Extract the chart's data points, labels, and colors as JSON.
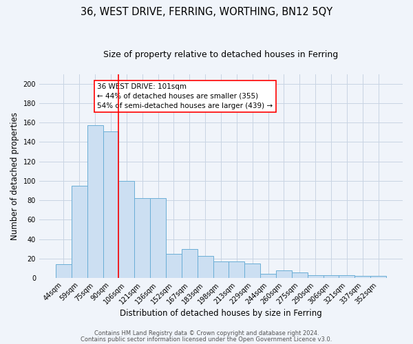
{
  "title": "36, WEST DRIVE, FERRING, WORTHING, BN12 5QY",
  "subtitle": "Size of property relative to detached houses in Ferring",
  "xlabel": "Distribution of detached houses by size in Ferring",
  "ylabel": "Number of detached properties",
  "bar_labels": [
    "44sqm",
    "59sqm",
    "75sqm",
    "90sqm",
    "106sqm",
    "121sqm",
    "136sqm",
    "152sqm",
    "167sqm",
    "183sqm",
    "198sqm",
    "213sqm",
    "229sqm",
    "244sqm",
    "260sqm",
    "275sqm",
    "290sqm",
    "306sqm",
    "321sqm",
    "337sqm",
    "352sqm"
  ],
  "bar_heights": [
    14,
    95,
    157,
    151,
    100,
    82,
    82,
    25,
    30,
    23,
    17,
    17,
    15,
    4,
    8,
    6,
    3,
    3,
    3,
    2,
    2
  ],
  "bar_color": "#ccdff2",
  "bar_edge_color": "#6aaed6",
  "red_line_index": 4,
  "ylim": [
    0,
    210
  ],
  "yticks": [
    0,
    20,
    40,
    60,
    80,
    100,
    120,
    140,
    160,
    180,
    200
  ],
  "annotation_line1": "36 WEST DRIVE: 101sqm",
  "annotation_line2": "← 44% of detached houses are smaller (355)",
  "annotation_line3": "54% of semi-detached houses are larger (439) →",
  "footer_line1": "Contains HM Land Registry data © Crown copyright and database right 2024.",
  "footer_line2": "Contains public sector information licensed under the Open Government Licence v3.0.",
  "background_color": "#f0f4fa",
  "grid_color": "#c8d4e3",
  "title_fontsize": 10.5,
  "subtitle_fontsize": 9,
  "axis_label_fontsize": 8.5,
  "tick_fontsize": 7,
  "annotation_fontsize": 7.5,
  "footer_fontsize": 6
}
